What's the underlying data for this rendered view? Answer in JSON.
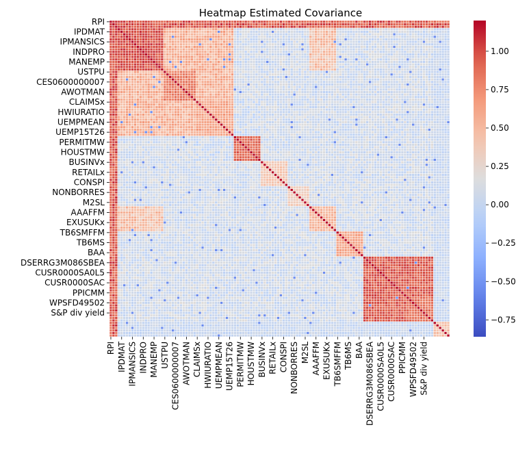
{
  "chart_data": {
    "type": "heatmap",
    "title": "Heatmap Estimated Covariance",
    "xlabel": "",
    "ylabel": "",
    "colormap": "coolwarm",
    "color_low": "#3b4cc0",
    "color_mid": "#dddddd",
    "color_high": "#b40426",
    "vmin": -0.86,
    "vmax": 1.2,
    "n_variables": 126,
    "tick_labels": [
      "RPI",
      "IPDMAT",
      "IPMANSICS",
      "INDPRO",
      "MANEMP",
      "USTPU",
      "CES0600000007",
      "AWOTMAN",
      "CLAIMSx",
      "HWIURATIO",
      "UEMPMEAN",
      "UEMP15T26",
      "PERMITMW",
      "HOUSTMW",
      "BUSINVx",
      "RETAILx",
      "CONSPI",
      "NONBORRES",
      "M2SL",
      "AAAFFM",
      "EXUSUKx",
      "TB6SMFFM",
      "TB6MS",
      "BAA",
      "DSERRG3M086SBEA",
      "CUSR0000SA0L5",
      "CUSR0000SAC",
      "PPICMM",
      "WPSFD49502",
      "S&P div yield"
    ],
    "tick_indices": [
      0,
      4,
      8,
      12,
      16,
      20,
      24,
      28,
      32,
      36,
      40,
      44,
      48,
      52,
      56,
      60,
      64,
      68,
      72,
      76,
      80,
      84,
      88,
      92,
      96,
      100,
      104,
      108,
      112,
      116
    ],
    "colorbar_ticks": [
      1.0,
      0.75,
      0.5,
      0.25,
      0.0,
      -0.25,
      -0.5,
      -0.75
    ],
    "colorbar_tick_labels": [
      "1.00",
      "0.75",
      "0.50",
      "0.25",
      "0.00",
      "−0.25",
      "−0.50",
      "−0.75"
    ],
    "grid": true,
    "legend": "colorbar-right"
  }
}
